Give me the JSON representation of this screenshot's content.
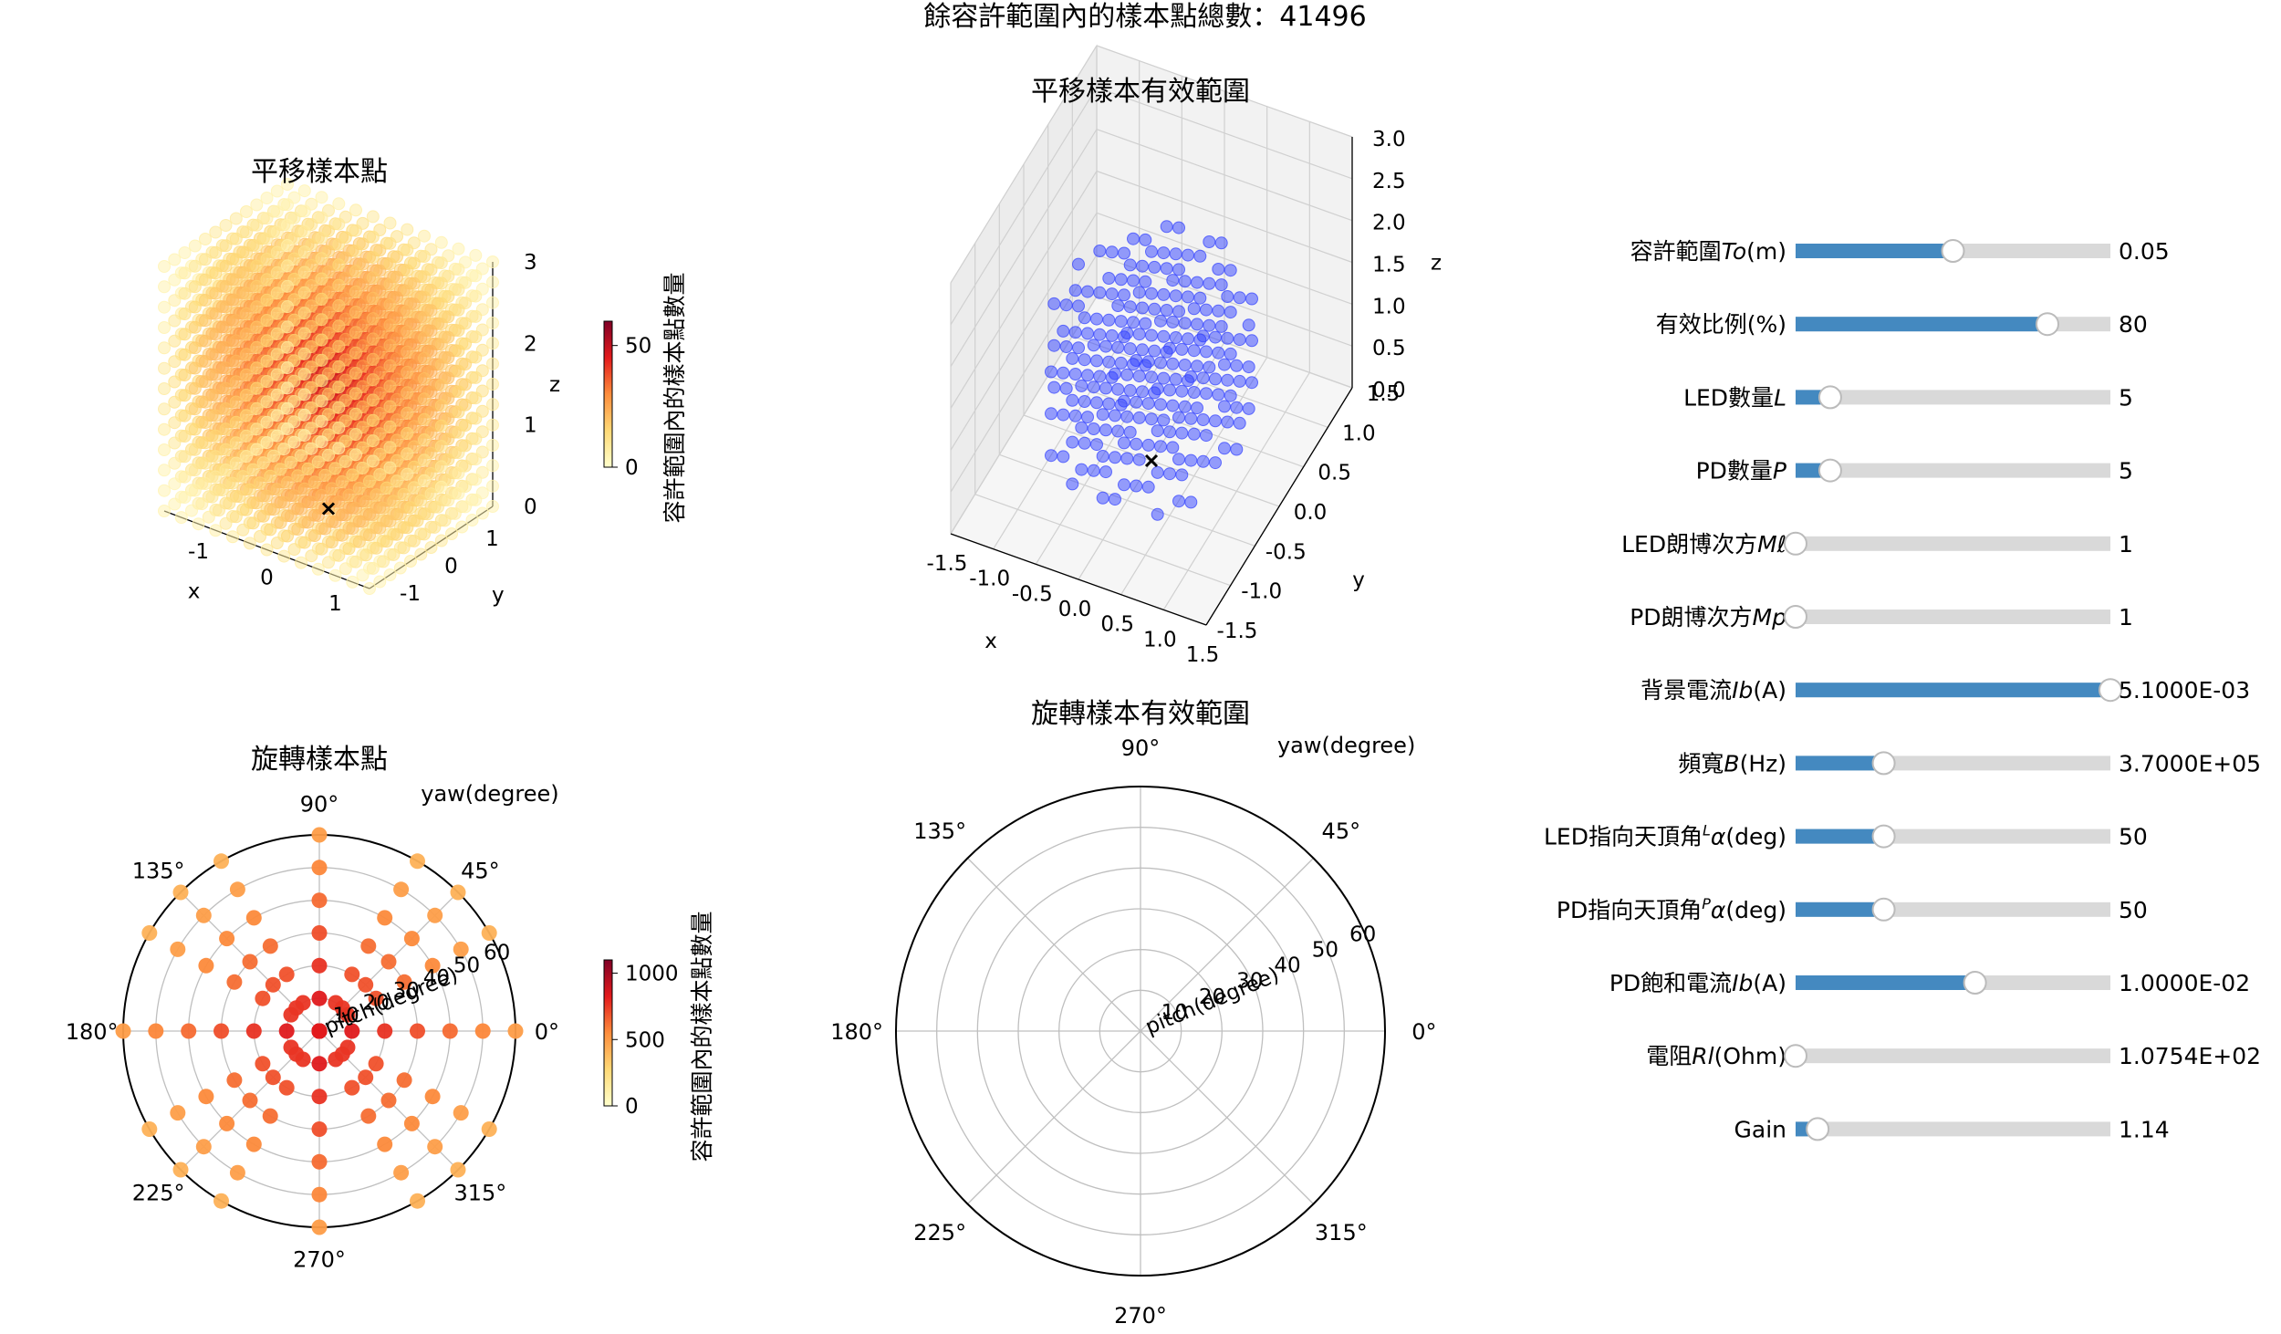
{
  "figure": {
    "suptitle": "餘容許範圍內的樣本點總數：41496"
  },
  "colors": {
    "accent": "#4489c0",
    "track": "#d9d9d9",
    "knob_edge": "#bbbbbb",
    "scatter_blue": "#2f3fff",
    "grid": "#bfbfbf"
  },
  "chart_data": [
    {
      "id": "translation-samples",
      "type": "scatter3d",
      "title": "平移樣本點",
      "xlabel": "x",
      "ylabel": "y",
      "zlabel": "z",
      "x_ticks": [
        "-1",
        "0",
        "1"
      ],
      "y_ticks": [
        "-1",
        "0",
        "1"
      ],
      "z_ticks": [
        "0",
        "1",
        "2",
        "3"
      ],
      "grid": [
        -1.5,
        1.5,
        -1.5,
        1.5,
        0,
        3
      ],
      "colormap": "YlOrRd",
      "marker": "x",
      "colorbar": {
        "label": "容許範圍內的樣本點數量",
        "ticks": [
          "0",
          "50"
        ],
        "range": [
          0,
          60
        ]
      }
    },
    {
      "id": "translation-valid",
      "type": "scatter3d",
      "title": "平移樣本有效範圍",
      "xlabel": "x",
      "ylabel": "y",
      "zlabel": "z",
      "x_ticks": [
        "-1.5",
        "-1.0",
        "-0.5",
        "0.0",
        "0.5",
        "1.0",
        "1.5"
      ],
      "y_ticks": [
        "-1.5",
        "-1.0",
        "-0.5",
        "0.0",
        "0.5",
        "1.0",
        "1.5"
      ],
      "z_ticks": [
        "0.0",
        "0.5",
        "1.0",
        "1.5",
        "2.0",
        "2.5",
        "3.0"
      ],
      "range": [
        -1.5,
        1.5,
        -1.5,
        1.5,
        0,
        3
      ],
      "grid": "on",
      "color": "blue",
      "marker": "x"
    },
    {
      "id": "rotation-samples",
      "type": "polar-scatter",
      "title": "旋轉樣本點",
      "theta_label": "yaw(degree)",
      "r_label": "pitch(degree)",
      "theta_ticks": [
        "0°",
        "45°",
        "90°",
        "135°",
        "180°",
        "225°",
        "270°",
        "315°"
      ],
      "r_ticks": [
        "10",
        "20",
        "30",
        "40",
        "50",
        "60"
      ],
      "r_range": [
        0,
        60
      ],
      "points_r": [
        0,
        10,
        20,
        30,
        40,
        50,
        60
      ],
      "points_theta_deg": [
        0,
        30,
        45,
        60,
        90,
        120,
        135,
        150,
        180,
        210,
        225,
        240,
        270,
        300,
        315,
        330
      ],
      "colorbar": {
        "label": "容許範圍內的樣本點數量",
        "ticks": [
          "0",
          "500",
          "1000"
        ],
        "range": [
          0,
          1100
        ]
      }
    },
    {
      "id": "rotation-valid",
      "type": "polar-scatter",
      "title": "旋轉樣本有效範圍",
      "theta_label": "yaw(degree)",
      "r_label": "pitch(degree)",
      "theta_ticks": [
        "0°",
        "45°",
        "90°",
        "135°",
        "180°",
        "225°",
        "270°",
        "315°"
      ],
      "r_ticks": [
        "10",
        "20",
        "30",
        "40",
        "50",
        "60"
      ],
      "r_range": [
        0,
        60
      ]
    }
  ],
  "sliders": [
    {
      "name": "To",
      "prefix": "容許範圍",
      "italic": "To",
      "sup": "",
      "suffix": "(m)",
      "fraction": 0.5,
      "value": "0.05"
    },
    {
      "name": "ratio",
      "prefix": "有效比例(%)",
      "italic": "",
      "sup": "",
      "suffix": "",
      "fraction": 0.8,
      "value": "80"
    },
    {
      "name": "L",
      "prefix": "LED數量",
      "italic": "L",
      "sup": "",
      "suffix": "",
      "fraction": 0.11,
      "value": "5"
    },
    {
      "name": "P",
      "prefix": "PD數量",
      "italic": "P",
      "sup": "",
      "suffix": "",
      "fraction": 0.11,
      "value": "5"
    },
    {
      "name": "Ml",
      "prefix": "LED朗博次方",
      "italic": "Mℓ",
      "sup": "",
      "suffix": "",
      "fraction": 0.0,
      "value": "1"
    },
    {
      "name": "Mp",
      "prefix": "PD朗博次方",
      "italic": "Mp",
      "sup": "",
      "suffix": "",
      "fraction": 0.0,
      "value": "1"
    },
    {
      "name": "Ib",
      "prefix": "背景電流",
      "italic": "Ib",
      "sup": "",
      "suffix": "(A)",
      "fraction": 1.0,
      "value": "5.1000E-03"
    },
    {
      "name": "B",
      "prefix": "頻寬",
      "italic": "B",
      "sup": "",
      "suffix": "(Hz)",
      "fraction": 0.28,
      "value": "3.7000E+05"
    },
    {
      "name": "La",
      "prefix": "LED指向天頂角",
      "italic": "α",
      "sup": "L",
      "suffix": "(deg)",
      "fraction": 0.28,
      "value": "50"
    },
    {
      "name": "Pa",
      "prefix": "PD指向天頂角",
      "italic": "α",
      "sup": "P",
      "suffix": "(deg)",
      "fraction": 0.28,
      "value": "50"
    },
    {
      "name": "Isat",
      "prefix": "PD飽和電流",
      "italic": "Ib",
      "sup": "",
      "suffix": "(A)",
      "fraction": 0.57,
      "value": "1.0000E-02"
    },
    {
      "name": "Rl",
      "prefix": "電阻",
      "italic": "Rl",
      "sup": "",
      "suffix": "(Ohm)",
      "fraction": 0.0,
      "value": "1.0754E+02"
    },
    {
      "name": "Gain",
      "prefix": "Gain",
      "italic": "",
      "sup": "",
      "suffix": "",
      "fraction": 0.07,
      "value": "1.14"
    }
  ]
}
